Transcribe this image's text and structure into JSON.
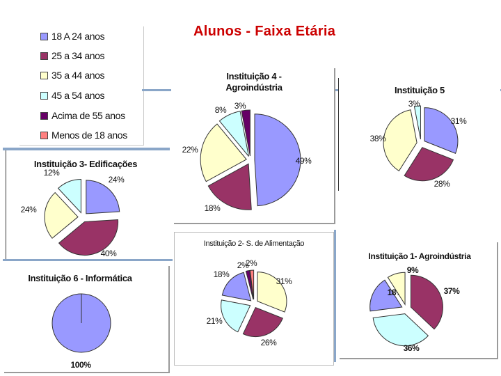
{
  "title": "Alunos - Faixa Etária",
  "legend": [
    {
      "label": "18 A 24  anos",
      "color": "#9999ff"
    },
    {
      "label": "25 a 34 anos",
      "color": "#993366"
    },
    {
      "label": "35 a 44 anos",
      "color": "#ffffcc"
    },
    {
      "label": "45 a 54 anos",
      "color": "#ccffff"
    },
    {
      "label": "Acima de 55 anos",
      "color": "#660066"
    },
    {
      "label": "Menos de 18 anos",
      "color": "#ff8080"
    }
  ],
  "chart_data": [
    {
      "type": "pie",
      "title": "Instituição 4 - Agroindústria",
      "categories": [
        "18 A 24  anos",
        "25 a 34 anos",
        "35 a 44 anos",
        "45 a 54 anos",
        "Acima de 55 anos"
      ],
      "values": [
        49,
        18,
        22,
        8,
        3
      ],
      "labels": [
        "49%",
        "18%",
        "22%",
        "8%",
        "3%"
      ]
    },
    {
      "type": "pie",
      "title": "Instituição 5",
      "categories": [
        "18 A 24  anos",
        "25 a 34 anos",
        "35 a 44 anos",
        "45 a 54 anos"
      ],
      "values": [
        31,
        28,
        38,
        3
      ],
      "labels": [
        "31%",
        "28%",
        "38%",
        "3%"
      ]
    },
    {
      "type": "pie",
      "title": "Instituição 3- Edificações",
      "categories": [
        "18 A 24  anos",
        "25 a 34 anos",
        "35 a 44 anos",
        "45 a 54 anos"
      ],
      "values": [
        24,
        40,
        24,
        12
      ],
      "labels": [
        "24%",
        "40%",
        "24%",
        "12%"
      ]
    },
    {
      "type": "pie",
      "title": "Instituição 2- S. de Alimentação",
      "categories": [
        "35 a 44 anos",
        "25 a 34 anos",
        "45 a 54 anos",
        "18 A 24  anos",
        "Acima de 55 anos",
        "Menos de 18 anos"
      ],
      "values": [
        31,
        26,
        21,
        18,
        2,
        2
      ],
      "labels": [
        "31%",
        "26%",
        "21%",
        "18%",
        "2%",
        "2%"
      ]
    },
    {
      "type": "pie",
      "title": "Instituição 1- Agroindústria",
      "categories": [
        "25 a 34 anos",
        "45 a 54 anos",
        "18 A 24  anos",
        "35 a 44 anos"
      ],
      "values": [
        37,
        36,
        18,
        9
      ],
      "labels": [
        "37%",
        "36%",
        "18%",
        "9%"
      ]
    },
    {
      "type": "pie",
      "title": "Instituição 6 - Informática",
      "categories": [
        "18 A 24  anos"
      ],
      "values": [
        100
      ],
      "labels": [
        "100%"
      ]
    }
  ]
}
